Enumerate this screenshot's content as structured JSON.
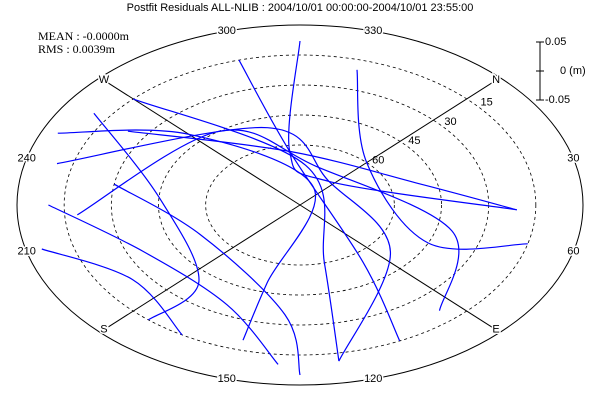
{
  "chart_data": {
    "type": "skyplot",
    "title": "Postfit Residuals ALL-NLIB : 2004/10/01 00:00:00-2004/10/01 23:55:00",
    "stats": [
      "MEAN : -0.0000m",
      "RMS : 0.0039m"
    ],
    "azimuth_labels": [
      {
        "value": 0,
        "label": "N"
      },
      30,
      60,
      {
        "value": 90,
        "label": "E"
      },
      120,
      150,
      {
        "value": 180,
        "label": "S"
      },
      210,
      240,
      {
        "value": 270,
        "label": "W"
      },
      300,
      330
    ],
    "elevation_ticks": [
      15,
      30,
      45,
      60
    ],
    "scale_ticks": [
      0.05,
      {
        "value": 0,
        "label": "0 (m)"
      },
      -0.05
    ],
    "color": "#0000ff",
    "series": [
      {
        "az": [
          315,
          308,
          353,
          47
        ],
        "el": [
          8,
          63,
          75,
          21
        ]
      },
      {
        "az": [
          259,
          308,
          30,
          47
        ],
        "el": [
          24,
          63,
          50,
          21
        ]
      },
      {
        "az": [
          221,
          280,
          330,
          60,
          95
        ],
        "el": [
          19,
          45,
          70,
          40,
          21
        ]
      },
      {
        "az": [
          240,
          300,
          353,
          84,
          126
        ],
        "el": [
          10,
          50,
          75,
          53,
          11
        ]
      },
      {
        "az": [
          225,
          200,
          160,
          140
        ],
        "el": [
          10,
          35,
          35,
          10
        ]
      },
      {
        "az": [
          260,
          230,
          175,
          175
        ],
        "el": [
          10,
          45,
          40,
          15
        ]
      },
      {
        "az": [
          270,
          320,
          120,
          126
        ],
        "el": [
          15,
          70,
          60,
          11
        ]
      },
      {
        "az": [
          300,
          308,
          100,
          110
        ],
        "el": [
          15,
          63,
          55,
          15
        ]
      },
      {
        "az": [
          210,
          190,
          165
        ],
        "el": [
          5,
          25,
          15
        ]
      },
      {
        "az": [
          330,
          0,
          70,
          60
        ],
        "el": [
          20,
          60,
          45,
          15
        ]
      },
      {
        "az": [
          250,
          270,
          340,
          150,
          150
        ],
        "el": [
          5,
          40,
          80,
          50,
          20
        ]
      },
      {
        "az": [
          235,
          200,
          140,
          135
        ],
        "el": [
          30,
          55,
          35,
          5
        ]
      }
    ]
  }
}
